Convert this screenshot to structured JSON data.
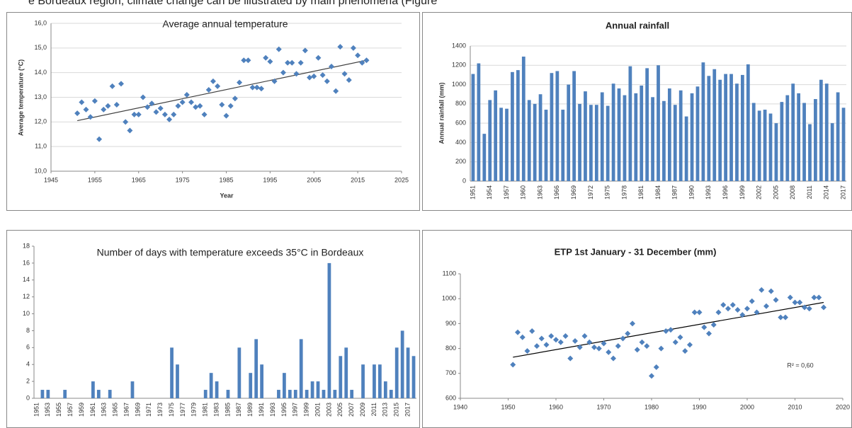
{
  "header_text": "e Bordeaux region, climate change can be illustrated by main phenomena (Figure",
  "chart_data": [
    {
      "type": "scatter",
      "title": "Average annual temperature",
      "y_label": "Average temperature (°C)",
      "x_label": "Year",
      "x": [
        1951,
        1952,
        1953,
        1954,
        1955,
        1956,
        1957,
        1958,
        1959,
        1960,
        1961,
        1962,
        1963,
        1964,
        1965,
        1966,
        1967,
        1968,
        1969,
        1970,
        1971,
        1972,
        1973,
        1974,
        1975,
        1976,
        1977,
        1978,
        1979,
        1980,
        1981,
        1982,
        1983,
        1984,
        1985,
        1986,
        1987,
        1988,
        1989,
        1990,
        1991,
        1992,
        1993,
        1994,
        1995,
        1996,
        1997,
        1998,
        1999,
        2000,
        2001,
        2002,
        2003,
        2004,
        2005,
        2006,
        2007,
        2008,
        2009,
        2010,
        2011,
        2012,
        2013,
        2014,
        2015,
        2016,
        2017
      ],
      "values": [
        12.35,
        12.8,
        12.5,
        12.2,
        12.85,
        11.3,
        12.5,
        12.65,
        13.45,
        12.7,
        13.55,
        12.0,
        11.65,
        12.3,
        12.3,
        13.0,
        12.6,
        12.75,
        12.4,
        12.55,
        12.3,
        12.1,
        12.3,
        12.65,
        12.8,
        13.1,
        12.8,
        12.6,
        12.65,
        12.3,
        13.3,
        13.65,
        13.45,
        12.7,
        12.25,
        12.65,
        12.95,
        13.6,
        14.5,
        14.5,
        13.4,
        13.4,
        13.35,
        14.6,
        14.45,
        13.65,
        14.95,
        14.0,
        14.4,
        14.4,
        13.95,
        14.4,
        14.9,
        13.8,
        13.85,
        14.6,
        13.9,
        13.65,
        14.25,
        13.25,
        15.05,
        13.95,
        13.7,
        15.0,
        14.7,
        14.4,
        14.5
      ],
      "color": "#4f81bd",
      "trendline": {
        "x": [
          1951,
          2017
        ],
        "y": [
          12.05,
          14.5
        ],
        "color": "#404040"
      },
      "xlim": [
        1945,
        2025
      ],
      "xticks": [
        1945,
        1955,
        1965,
        1975,
        1985,
        1995,
        2005,
        2015,
        2025
      ],
      "ylim": [
        10,
        16
      ],
      "yticks": [
        {
          "value": 10,
          "label": "10,0"
        },
        {
          "value": 11,
          "label": "11,0"
        },
        {
          "value": 12,
          "label": "12,0"
        },
        {
          "value": 13,
          "label": "13,0"
        },
        {
          "value": 14,
          "label": "14,0"
        },
        {
          "value": 15,
          "label": "15,0"
        },
        {
          "value": 16,
          "label": "16,0"
        }
      ],
      "grid": true
    },
    {
      "type": "bar",
      "title": "Annual rainfall",
      "y_label": "Annual rainfall  (mm)",
      "categories": [
        "1951",
        null,
        null,
        "1954",
        null,
        null,
        "1957",
        null,
        null,
        "1960",
        null,
        null,
        "1963",
        null,
        null,
        "1966",
        null,
        null,
        "1969",
        null,
        null,
        "1972",
        null,
        null,
        "1975",
        null,
        null,
        "1978",
        null,
        null,
        "1981",
        null,
        null,
        "1984",
        null,
        null,
        "1987",
        null,
        null,
        "1990",
        null,
        null,
        "1993",
        null,
        null,
        "1996",
        null,
        null,
        "1999",
        null,
        null,
        "2002",
        null,
        null,
        "2005",
        null,
        null,
        "2008",
        null,
        null,
        "2011",
        null,
        null,
        "2014",
        null,
        null,
        "2017"
      ],
      "values": [
        1110,
        1220,
        490,
        840,
        940,
        760,
        750,
        1130,
        1150,
        1290,
        840,
        800,
        900,
        740,
        1120,
        1140,
        740,
        1000,
        1140,
        800,
        930,
        790,
        790,
        920,
        780,
        1010,
        960,
        890,
        1190,
        910,
        990,
        1170,
        870,
        1200,
        830,
        960,
        790,
        940,
        670,
        910,
        980,
        1230,
        1090,
        1160,
        1050,
        1110,
        1110,
        1010,
        1100,
        1210,
        810,
        730,
        740,
        700,
        600,
        820,
        890,
        1010,
        910,
        810,
        590,
        850,
        1050,
        1010,
        600,
        920,
        760
      ],
      "color": "#4f81bd",
      "ylim": [
        0,
        1400
      ],
      "yticks": [
        0,
        200,
        400,
        600,
        800,
        1000,
        1200,
        1400
      ],
      "grid": true
    },
    {
      "type": "bar",
      "title": "Number of days with temperature exceeds 35°C in Bordeaux",
      "categories": [
        "1951",
        null,
        "1953",
        null,
        "1955",
        null,
        "1957",
        null,
        "1959",
        null,
        "1961",
        null,
        "1963",
        null,
        "1965",
        null,
        "1967",
        null,
        "1969",
        null,
        "1971",
        null,
        "1973",
        null,
        "1975",
        null,
        "1977",
        null,
        "1979",
        null,
        "1981",
        null,
        "1983",
        null,
        "1985",
        null,
        "1987",
        null,
        "1989",
        null,
        "1991",
        null,
        "1993",
        null,
        "1995",
        null,
        "1997",
        null,
        "1999",
        null,
        "2001",
        null,
        "2003",
        null,
        "2005",
        null,
        "2007",
        null,
        "2009",
        null,
        "2011",
        null,
        "2013",
        null,
        "2015",
        null,
        "2017",
        null
      ],
      "values": [
        0,
        1,
        1,
        0,
        0,
        1,
        0,
        0,
        0,
        0,
        2,
        1,
        0,
        1,
        0,
        0,
        0,
        2,
        0,
        0,
        0,
        0,
        0,
        0,
        6,
        4,
        0,
        0,
        0,
        0,
        1,
        3,
        2,
        0,
        1,
        0,
        6,
        0,
        3,
        7,
        4,
        0,
        0,
        1,
        3,
        1,
        1,
        7,
        1,
        2,
        2,
        1,
        16,
        1,
        5,
        6,
        1,
        0,
        4,
        0,
        4,
        4,
        2,
        1,
        6,
        8,
        6,
        5
      ],
      "color": "#4f81bd",
      "ylim": [
        0,
        18
      ],
      "yticks": [
        0,
        2,
        4,
        6,
        8,
        10,
        12,
        14,
        16,
        18
      ],
      "grid": false
    },
    {
      "type": "scatter",
      "title": "ETP 1st January - 31 December (mm)",
      "annotation": "R² = 0,60",
      "x": [
        1951,
        1952,
        1953,
        1954,
        1955,
        1956,
        1957,
        1958,
        1959,
        1960,
        1961,
        1962,
        1963,
        1964,
        1965,
        1966,
        1967,
        1968,
        1969,
        1970,
        1971,
        1972,
        1973,
        1974,
        1975,
        1976,
        1977,
        1978,
        1979,
        1980,
        1981,
        1982,
        1983,
        1984,
        1985,
        1986,
        1987,
        1988,
        1989,
        1990,
        1991,
        1992,
        1993,
        1994,
        1995,
        1996,
        1997,
        1998,
        1999,
        2000,
        2001,
        2002,
        2003,
        2004,
        2005,
        2006,
        2007,
        2008,
        2009,
        2010,
        2011,
        2012,
        2013,
        2014,
        2015,
        2016
      ],
      "values": [
        735,
        865,
        845,
        790,
        870,
        810,
        840,
        815,
        850,
        835,
        825,
        850,
        760,
        830,
        805,
        850,
        825,
        805,
        800,
        820,
        785,
        760,
        810,
        840,
        860,
        900,
        795,
        825,
        810,
        690,
        725,
        800,
        870,
        875,
        825,
        845,
        790,
        815,
        945,
        945,
        885,
        860,
        895,
        945,
        975,
        960,
        975,
        955,
        935,
        960,
        990,
        945,
        1035,
        970,
        1030,
        995,
        925,
        925,
        1005,
        985,
        985,
        965,
        960,
        1005,
        1005,
        965
      ],
      "color": "#4f81bd",
      "trendline": {
        "x": [
          1951,
          2016
        ],
        "y": [
          765,
          985
        ],
        "color": "#000000"
      },
      "xlim": [
        1940,
        2020
      ],
      "xticks": [
        1940,
        1950,
        1960,
        1970,
        1980,
        1990,
        2000,
        2010,
        2020
      ],
      "ylim": [
        600,
        1100
      ],
      "yticks": [
        600,
        700,
        800,
        900,
        1000,
        1100
      ],
      "grid": false
    }
  ]
}
